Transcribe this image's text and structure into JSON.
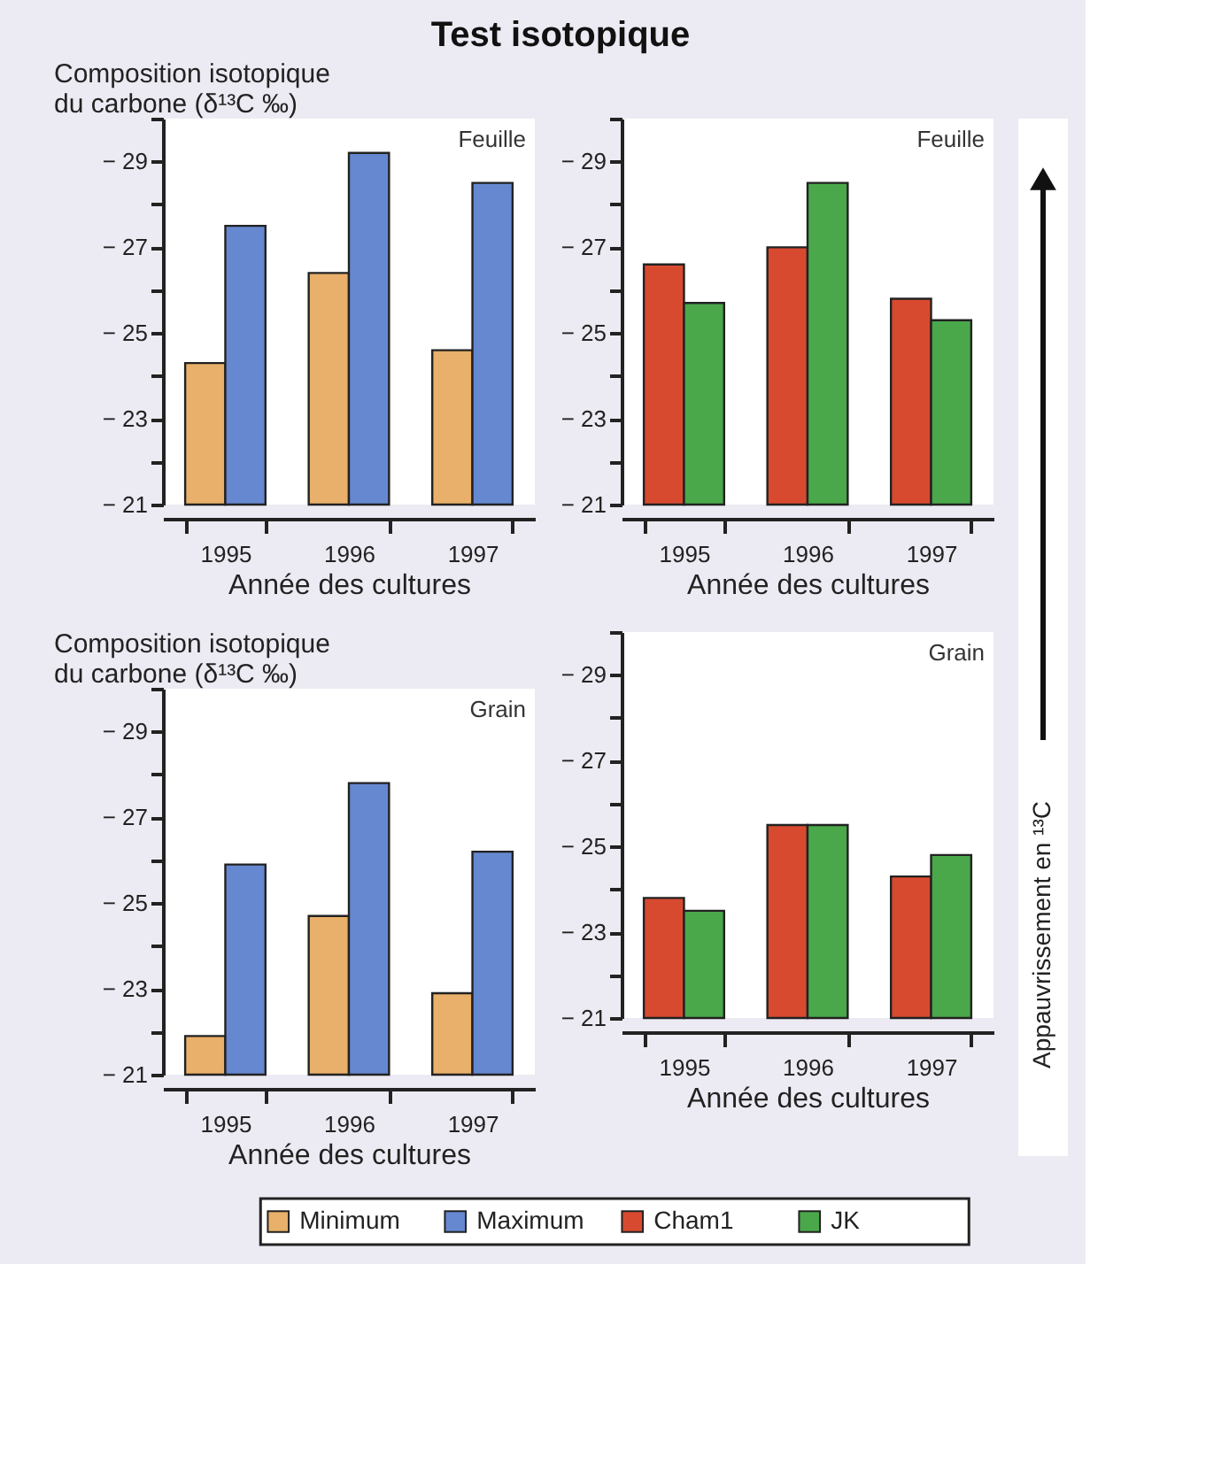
{
  "chart_data": [
    {
      "type": "bar",
      "title": "Test isotopique",
      "ylabel": "Composition isotopique du carbone (δ¹³C ‰)",
      "xlabel": "Année des cultures",
      "categories": [
        "1995",
        "1996",
        "1997"
      ],
      "series": [
        {
          "name": "Minimum",
          "color": "#e8b06a",
          "values": [
            -24.3,
            -26.4,
            -24.6
          ]
        },
        {
          "name": "Maximum",
          "color": "#6688d0",
          "values": [
            -27.5,
            -29.2,
            -28.5
          ]
        }
      ],
      "ylim": [
        -21,
        -30
      ],
      "yticks": [
        {
          "value": -21,
          "label": "− 21"
        },
        {
          "value": -22,
          "label": null
        },
        {
          "value": -23,
          "label": "− 23"
        },
        {
          "value": -24,
          "label": null
        },
        {
          "value": -25,
          "label": "− 25"
        },
        {
          "value": -26,
          "label": null
        },
        {
          "value": -27,
          "label": "− 27"
        },
        {
          "value": -28,
          "label": null
        },
        {
          "value": -29,
          "label": "− 29"
        },
        {
          "value": -30,
          "label": null
        }
      ],
      "annotations": [
        "Feuille"
      ],
      "legend": "bottom"
    },
    {
      "type": "bar",
      "xlabel": "Année des cultures",
      "categories": [
        "1995",
        "1996",
        "1997"
      ],
      "series": [
        {
          "name": "Cham1",
          "color": "#d84a30",
          "values": [
            -26.6,
            -27.0,
            -25.8
          ]
        },
        {
          "name": "JK",
          "color": "#4aa84a",
          "values": [
            -25.7,
            -28.5,
            -25.3
          ]
        }
      ],
      "ylim": [
        -21,
        -30
      ],
      "yticks": [
        {
          "value": -21,
          "label": "− 21"
        },
        {
          "value": -22,
          "label": null
        },
        {
          "value": -23,
          "label": "− 23"
        },
        {
          "value": -24,
          "label": null
        },
        {
          "value": -25,
          "label": "− 25"
        },
        {
          "value": -26,
          "label": null
        },
        {
          "value": -27,
          "label": "− 27"
        },
        {
          "value": -28,
          "label": null
        },
        {
          "value": -29,
          "label": "− 29"
        },
        {
          "value": -30,
          "label": null
        }
      ],
      "annotations": [
        "Feuille"
      ],
      "legend": "bottom"
    },
    {
      "type": "bar",
      "ylabel": "Composition isotopique du carbone (δ¹³C ‰)",
      "xlabel": "Année des cultures",
      "categories": [
        "1995",
        "1996",
        "1997"
      ],
      "series": [
        {
          "name": "Minimum",
          "color": "#e8b06a",
          "values": [
            -21.9,
            -24.7,
            -22.9
          ]
        },
        {
          "name": "Maximum",
          "color": "#6688d0",
          "values": [
            -25.9,
            -27.8,
            -26.2
          ]
        }
      ],
      "ylim": [
        -21,
        -30
      ],
      "yticks": [
        {
          "value": -21,
          "label": "− 21"
        },
        {
          "value": -22,
          "label": null
        },
        {
          "value": -23,
          "label": "− 23"
        },
        {
          "value": -24,
          "label": null
        },
        {
          "value": -25,
          "label": "− 25"
        },
        {
          "value": -26,
          "label": null
        },
        {
          "value": -27,
          "label": "− 27"
        },
        {
          "value": -28,
          "label": null
        },
        {
          "value": -29,
          "label": "− 29"
        },
        {
          "value": -30,
          "label": null
        }
      ],
      "annotations": [
        "Grain"
      ],
      "legend": "bottom"
    },
    {
      "type": "bar",
      "xlabel": "Année des cultures",
      "categories": [
        "1995",
        "1996",
        "1997"
      ],
      "series": [
        {
          "name": "Cham1",
          "color": "#d84a30",
          "values": [
            -23.8,
            -25.5,
            -24.3
          ]
        },
        {
          "name": "JK",
          "color": "#4aa84a",
          "values": [
            -23.5,
            -25.5,
            -24.8
          ]
        }
      ],
      "ylim": [
        -21,
        -30
      ],
      "yticks": [
        {
          "value": -21,
          "label": "− 21"
        },
        {
          "value": -22,
          "label": null
        },
        {
          "value": -23,
          "label": "− 23"
        },
        {
          "value": -24,
          "label": null
        },
        {
          "value": -25,
          "label": "− 25"
        },
        {
          "value": -26,
          "label": null
        },
        {
          "value": -27,
          "label": "− 27"
        },
        {
          "value": -28,
          "label": null
        },
        {
          "value": -29,
          "label": "− 29"
        },
        {
          "value": -30,
          "label": null
        }
      ],
      "annotations": [
        "Grain",
        "Appauvrissement en ¹³C"
      ],
      "legend": "bottom"
    }
  ]
}
